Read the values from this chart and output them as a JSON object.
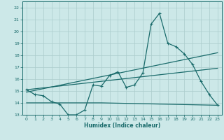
{
  "xlabel": "Humidex (Indice chaleur)",
  "bg_color": "#cce8e8",
  "grid_color": "#aacccc",
  "line_color": "#1a6b6b",
  "xlim": [
    -0.5,
    23.5
  ],
  "ylim": [
    13,
    22.5
  ],
  "xticks": [
    0,
    1,
    2,
    3,
    4,
    5,
    6,
    7,
    8,
    9,
    10,
    11,
    12,
    13,
    14,
    15,
    16,
    17,
    18,
    19,
    20,
    21,
    22,
    23
  ],
  "yticks": [
    13,
    14,
    15,
    16,
    17,
    18,
    19,
    20,
    21,
    22
  ],
  "curve1_x": [
    0,
    1,
    2,
    3,
    4,
    5,
    6,
    7,
    8,
    9,
    10,
    11,
    12,
    13,
    14,
    15,
    16,
    17,
    18,
    19,
    20,
    21,
    22,
    23
  ],
  "curve1_y": [
    15.1,
    14.7,
    14.6,
    14.1,
    13.9,
    13.0,
    13.0,
    13.4,
    15.5,
    15.4,
    16.3,
    16.6,
    15.3,
    15.5,
    16.5,
    20.6,
    21.5,
    19.0,
    18.7,
    18.1,
    17.2,
    15.8,
    14.7,
    13.8
  ],
  "curve2_x": [
    0,
    23
  ],
  "curve2_y": [
    14.9,
    18.2
  ],
  "curve3_x": [
    0,
    23
  ],
  "curve3_y": [
    15.1,
    16.9
  ],
  "curve4_x": [
    0,
    9,
    23
  ],
  "curve4_y": [
    14.0,
    14.0,
    13.8
  ]
}
